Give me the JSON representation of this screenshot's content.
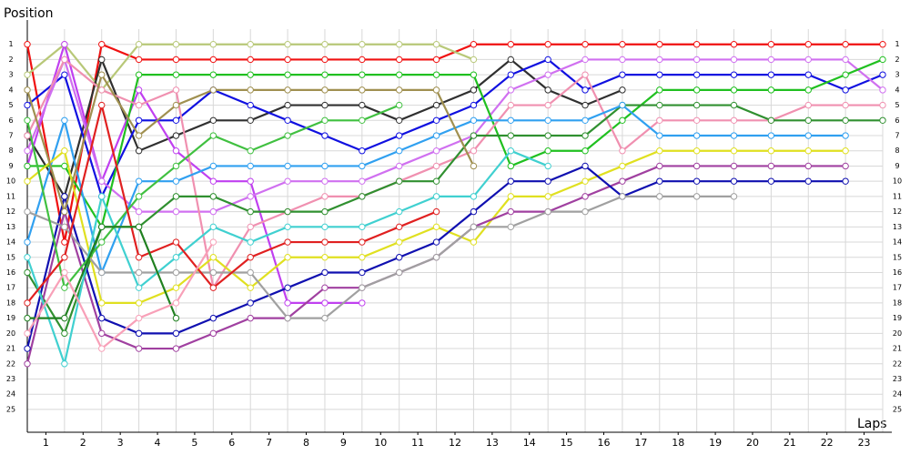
{
  "chart_data": {
    "type": "line",
    "y_label": "Position",
    "x_label": "Laps",
    "x": [
      0,
      1,
      2,
      3,
      4,
      5,
      6,
      7,
      8,
      9,
      10,
      11,
      12,
      13,
      14,
      15,
      16,
      17,
      18,
      19,
      20,
      21,
      22,
      23
    ],
    "xlim": [
      0,
      23
    ],
    "ylim": [
      26.5,
      0
    ],
    "inverted_y": true,
    "grid": true,
    "xticks": [
      {
        "value": 0.5,
        "label": "1"
      },
      {
        "value": 1.5,
        "label": "2"
      },
      {
        "value": 2.5,
        "label": "3"
      },
      {
        "value": 3.5,
        "label": "4"
      },
      {
        "value": 4.5,
        "label": "5"
      },
      {
        "value": 5.5,
        "label": "6"
      },
      {
        "value": 6.5,
        "label": "7"
      },
      {
        "value": 7.5,
        "label": "8"
      },
      {
        "value": 8.5,
        "label": "9"
      },
      {
        "value": 9.5,
        "label": "10"
      },
      {
        "value": 10.5,
        "label": "11"
      },
      {
        "value": 11.5,
        "label": "12"
      },
      {
        "value": 12.5,
        "label": "13"
      },
      {
        "value": 13.5,
        "label": "14"
      },
      {
        "value": 14.5,
        "label": "15"
      },
      {
        "value": 15.5,
        "label": "16"
      },
      {
        "value": 16.5,
        "label": "17"
      },
      {
        "value": 17.5,
        "label": "18"
      },
      {
        "value": 18.5,
        "label": "19"
      },
      {
        "value": 19.5,
        "label": "20"
      },
      {
        "value": 20.5,
        "label": "21"
      },
      {
        "value": 21.5,
        "label": "22"
      },
      {
        "value": 22.5,
        "label": "23"
      }
    ],
    "yticks": [
      1,
      2,
      3,
      4,
      5,
      6,
      7,
      8,
      9,
      10,
      11,
      12,
      13,
      14,
      15,
      16,
      17,
      18,
      19,
      20,
      21,
      22,
      23,
      24,
      25
    ],
    "series": [
      {
        "color": "#f01010",
        "values": [
          1,
          14,
          1,
          2,
          2,
          2,
          2,
          2,
          2,
          2,
          2,
          2,
          1,
          1,
          1,
          1,
          1,
          1,
          1,
          1,
          1,
          1,
          1,
          1
        ]
      },
      {
        "color": "#b8c878",
        "values": [
          3,
          1,
          4,
          1,
          1,
          1,
          1,
          1,
          1,
          1,
          1,
          1,
          2,
          null,
          null,
          null,
          null,
          null,
          null,
          null,
          null,
          null,
          null,
          null
        ]
      },
      {
        "color": "#303030",
        "values": [
          7,
          11,
          2,
          8,
          7,
          6,
          6,
          5,
          5,
          5,
          6,
          5,
          4,
          2,
          4,
          5,
          4,
          null,
          null,
          null,
          null,
          null,
          null,
          null
        ]
      },
      {
        "color": "#c040f0",
        "values": [
          9,
          1,
          10,
          4,
          8,
          10,
          10,
          18,
          18,
          18,
          null,
          null,
          null,
          null,
          null,
          null,
          null,
          null,
          null,
          null,
          null,
          null,
          null,
          null
        ]
      },
      {
        "color": "#1010e0",
        "values": [
          5,
          3,
          11,
          6,
          6,
          4,
          5,
          6,
          7,
          8,
          7,
          6,
          5,
          3,
          2,
          4,
          3,
          3,
          3,
          3,
          3,
          3,
          4,
          3
        ]
      },
      {
        "color": "#d070f0",
        "values": [
          8,
          2,
          10,
          12,
          12,
          12,
          11,
          10,
          10,
          10,
          9,
          8,
          7,
          4,
          3,
          2,
          2,
          2,
          2,
          2,
          2,
          2,
          2,
          4
        ]
      },
      {
        "color": "#20c020",
        "values": [
          9,
          9,
          13,
          3,
          3,
          3,
          3,
          3,
          3,
          3,
          3,
          3,
          3,
          9,
          8,
          8,
          6,
          4,
          4,
          4,
          4,
          4,
          3,
          2
        ]
      },
      {
        "color": "#f090b0",
        "values": [
          7,
          2,
          4,
          5,
          4,
          17,
          13,
          12,
          11,
          11,
          10,
          9,
          8,
          5,
          5,
          3,
          8,
          6,
          6,
          6,
          6,
          5,
          5,
          5
        ]
      },
      {
        "color": "#309030",
        "values": [
          16,
          20,
          13,
          13,
          11,
          11,
          12,
          12,
          12,
          11,
          10,
          10,
          7,
          7,
          7,
          7,
          5,
          5,
          5,
          5,
          6,
          6,
          6,
          6
        ]
      },
      {
        "color": "#30a0f0",
        "values": [
          14,
          6,
          16,
          10,
          10,
          9,
          9,
          9,
          9,
          9,
          8,
          7,
          6,
          6,
          6,
          6,
          5,
          7,
          7,
          7,
          7,
          7,
          7,
          null
        ]
      },
      {
        "color": "#e0e020",
        "values": [
          10,
          8,
          18,
          18,
          17,
          15,
          17,
          15,
          15,
          15,
          14,
          13,
          14,
          11,
          11,
          10,
          9,
          8,
          8,
          8,
          8,
          8,
          8,
          null
        ]
      },
      {
        "color": "#a040a0",
        "values": [
          22,
          12,
          20,
          21,
          21,
          20,
          19,
          19,
          17,
          17,
          16,
          15,
          13,
          12,
          12,
          11,
          10,
          9,
          9,
          9,
          9,
          9,
          9,
          null
        ]
      },
      {
        "color": "#1010b0",
        "values": [
          21,
          11,
          19,
          20,
          20,
          19,
          18,
          17,
          16,
          16,
          15,
          14,
          12,
          10,
          10,
          9,
          11,
          10,
          10,
          10,
          10,
          10,
          10,
          null
        ]
      },
      {
        "color": "#a0a0a0",
        "values": [
          12,
          13,
          16,
          16,
          16,
          16,
          16,
          19,
          19,
          17,
          16,
          15,
          13,
          13,
          12,
          12,
          11,
          11,
          11,
          11,
          null,
          null,
          null,
          null
        ]
      },
      {
        "color": "#40d0d0",
        "values": [
          15,
          22,
          11,
          17,
          15,
          13,
          14,
          13,
          13,
          13,
          12,
          11,
          11,
          8,
          9,
          null,
          null,
          null,
          null,
          null,
          null,
          null,
          null,
          null
        ]
      },
      {
        "color": "#a09050",
        "values": [
          4,
          12,
          3,
          7,
          5,
          4,
          4,
          4,
          4,
          4,
          4,
          4,
          9,
          null,
          null,
          null,
          null,
          null,
          null,
          null,
          null,
          null,
          null,
          null
        ]
      },
      {
        "color": "#40c040",
        "values": [
          6,
          17,
          14,
          11,
          9,
          7,
          8,
          7,
          6,
          6,
          5,
          null,
          null,
          null,
          null,
          null,
          null,
          null,
          null,
          null,
          null,
          null,
          null,
          null
        ]
      },
      {
        "color": "#e02020",
        "values": [
          18,
          15,
          5,
          15,
          14,
          17,
          15,
          14,
          14,
          14,
          13,
          12,
          null,
          null,
          null,
          null,
          null,
          null,
          null,
          null,
          null,
          null,
          null,
          null
        ]
      },
      {
        "color": "#208020",
        "values": [
          19,
          19,
          13,
          13,
          19,
          null,
          null,
          null,
          null,
          null,
          null,
          null,
          null,
          null,
          null,
          null,
          null,
          null,
          null,
          null,
          null,
          null,
          null,
          null
        ]
      },
      {
        "color": "#f8a0b8",
        "values": [
          20,
          16,
          21,
          19,
          18,
          14,
          null,
          null,
          null,
          null,
          null,
          null,
          null,
          null,
          null,
          null,
          null,
          null,
          null,
          null,
          null,
          null,
          null,
          null
        ]
      }
    ]
  }
}
